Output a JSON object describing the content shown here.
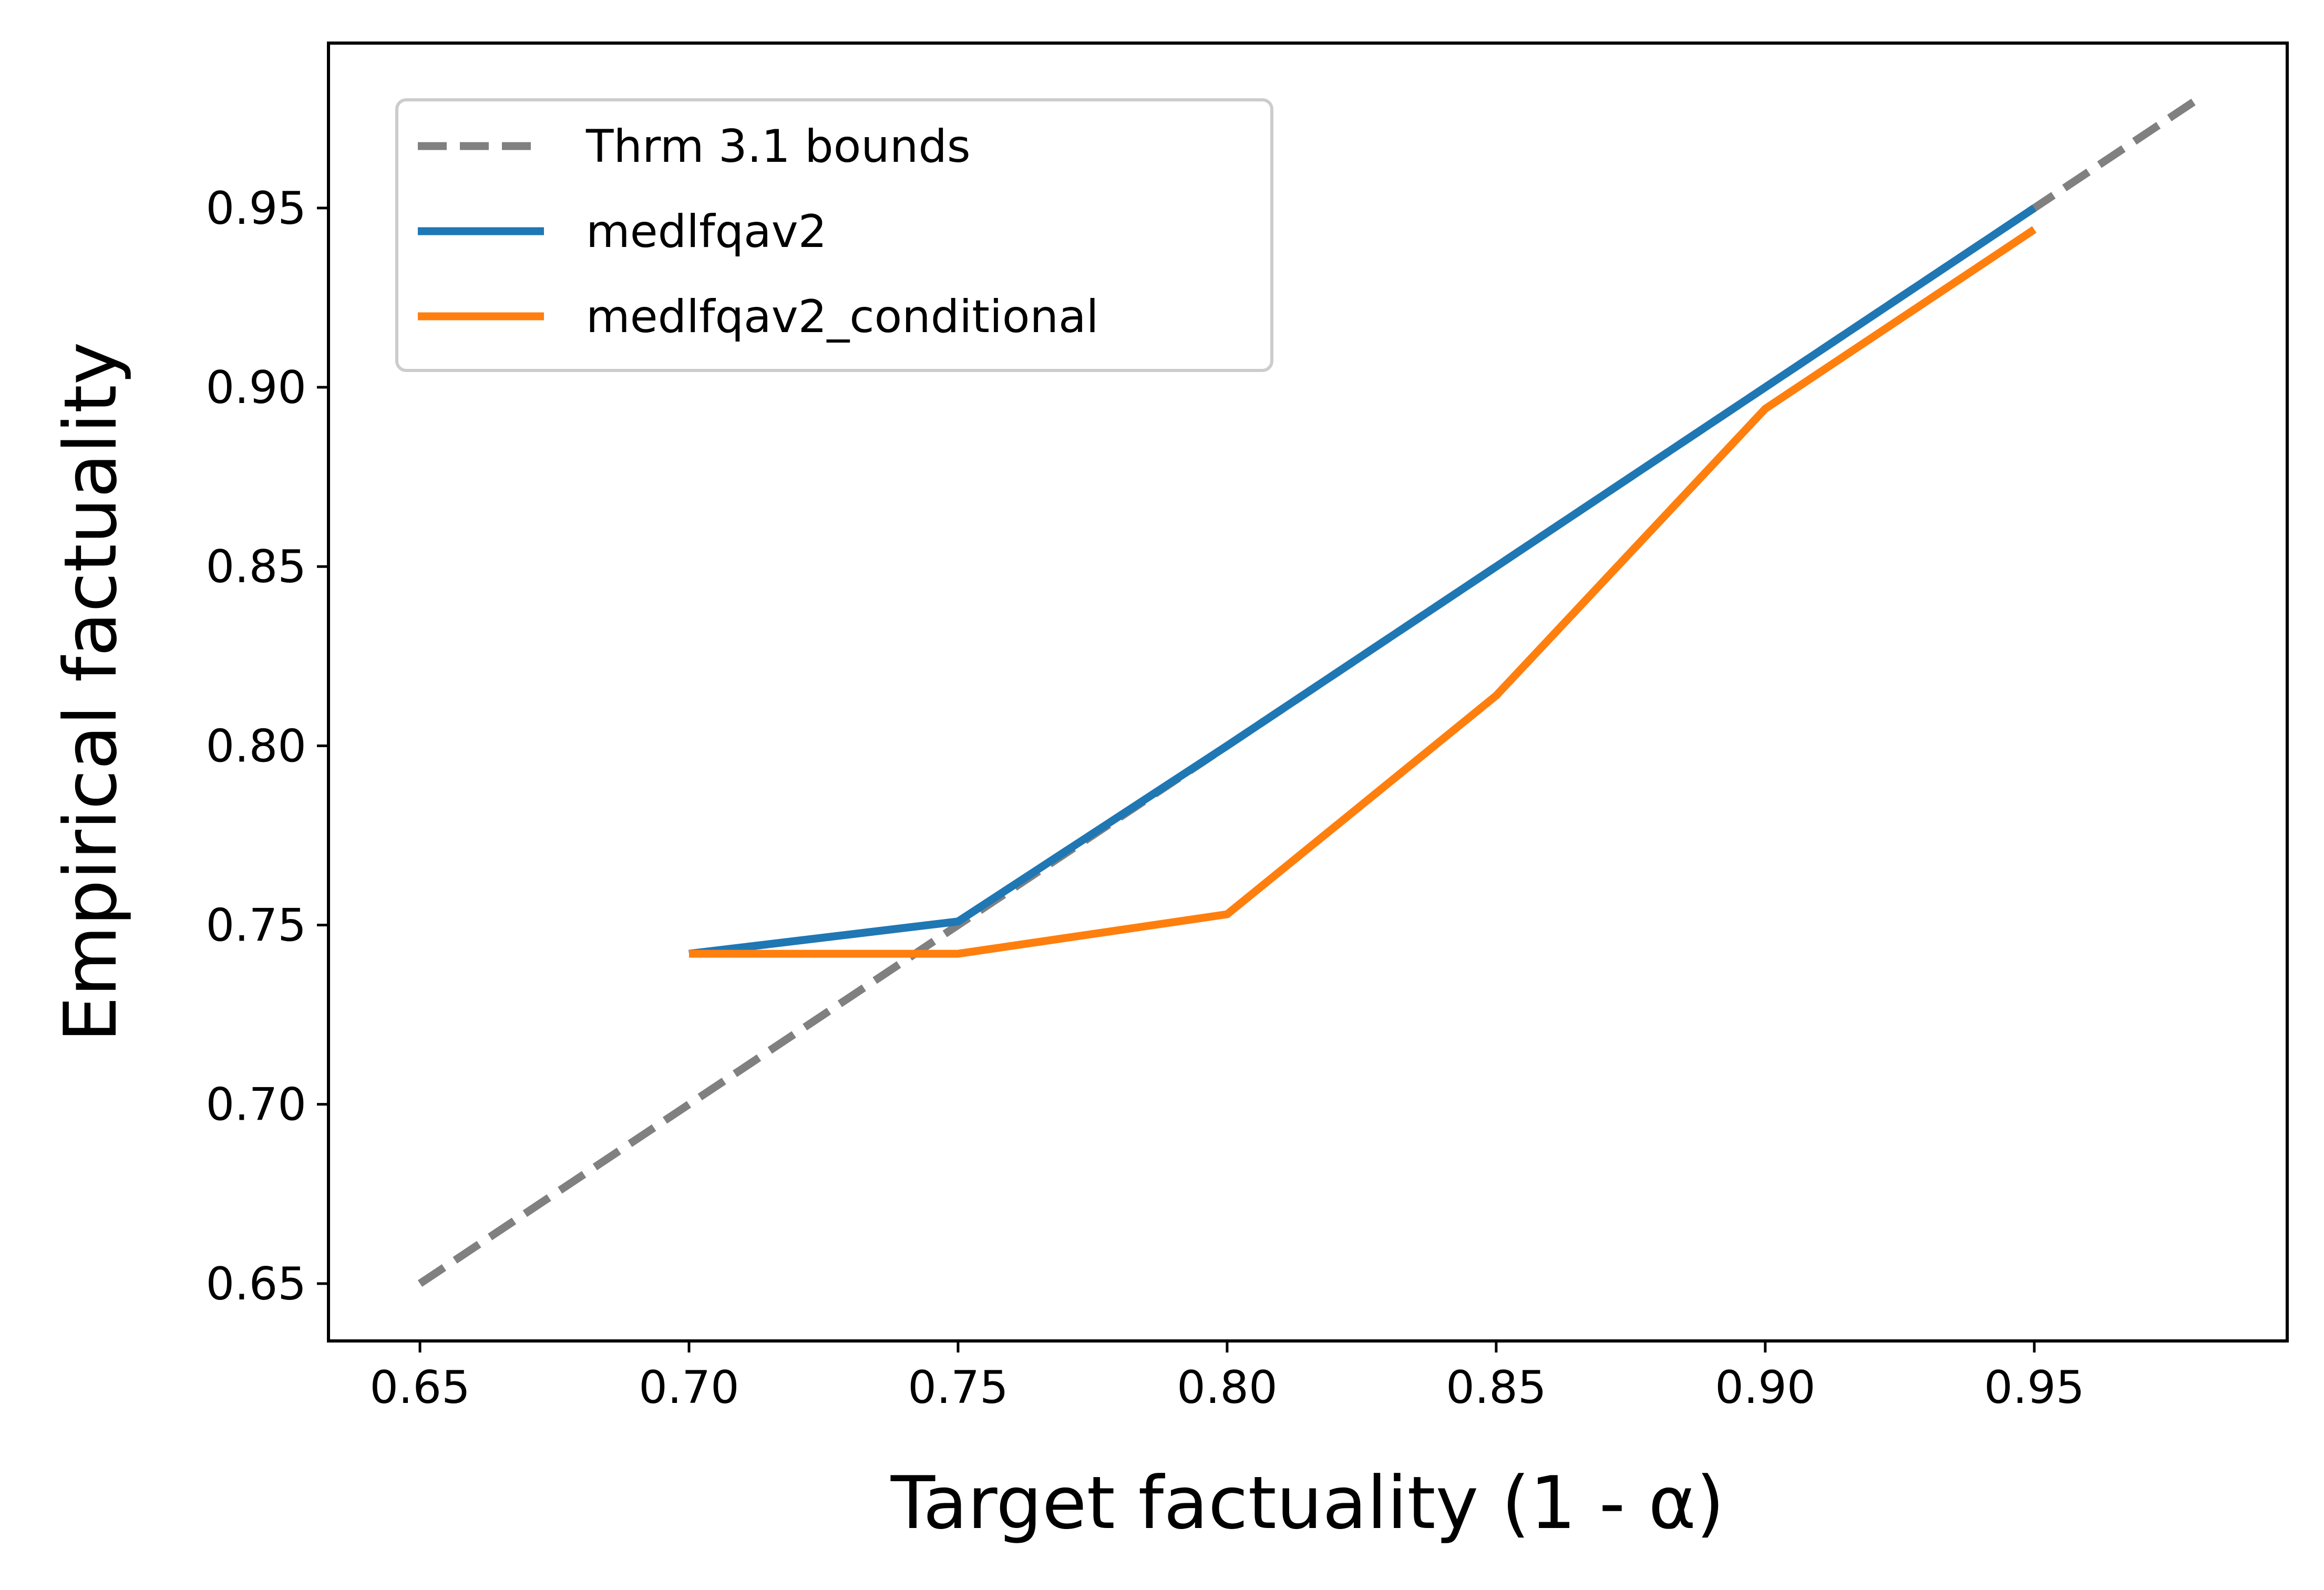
{
  "chart_data": {
    "type": "line",
    "xlabel": "Target factuality (1 - α)",
    "ylabel": "Empirical factuality",
    "xlim": [
      0.633,
      0.997
    ],
    "ylim": [
      0.634,
      0.996
    ],
    "xticks": [
      0.65,
      0.7,
      0.75,
      0.8,
      0.85,
      0.9,
      0.95
    ],
    "xtick_labels": [
      "0.65",
      "0.70",
      "0.75",
      "0.80",
      "0.85",
      "0.90",
      "0.95"
    ],
    "yticks": [
      0.65,
      0.7,
      0.75,
      0.8,
      0.85,
      0.9,
      0.95
    ],
    "ytick_labels": [
      "0.65",
      "0.70",
      "0.75",
      "0.80",
      "0.85",
      "0.90",
      "0.95"
    ],
    "grid": false,
    "legend_position": "top-left",
    "series": [
      {
        "name": "Thrm 3.1 bounds",
        "style": "dashed",
        "color": "#808080",
        "x": [
          0.65,
          0.98
        ],
        "y": [
          0.65,
          0.98
        ]
      },
      {
        "name": "medlfqav2",
        "style": "solid",
        "color": "#1f77b4",
        "x": [
          0.7,
          0.75,
          0.8,
          0.85,
          0.9,
          0.95
        ],
        "y": [
          0.742,
          0.751,
          0.8,
          0.85,
          0.9,
          0.95
        ]
      },
      {
        "name": "medlfqav2_conditional",
        "style": "solid",
        "color": "#ff7f0e",
        "x": [
          0.7,
          0.75,
          0.8,
          0.85,
          0.9,
          0.95
        ],
        "y": [
          0.742,
          0.742,
          0.753,
          0.814,
          0.894,
          0.944
        ]
      }
    ]
  }
}
